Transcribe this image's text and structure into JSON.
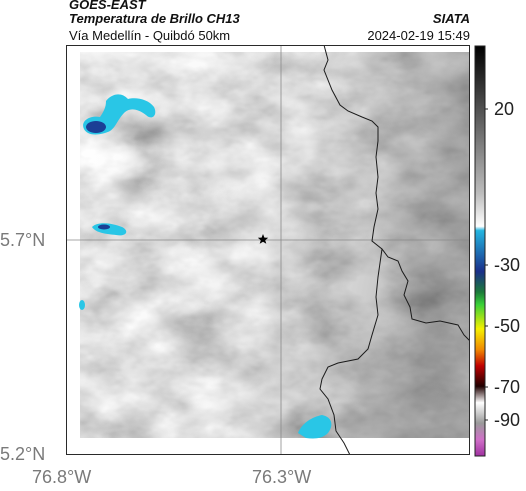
{
  "header": {
    "platform": "GOES-EAST",
    "product": "Temperatura de Brillo CH13",
    "route": "Vía Medellín - Quibdó 50km",
    "org": "SIATA",
    "timestamp": "2024-02-19 15:49"
  },
  "map": {
    "lat_ticks": [
      "5.7°N",
      "5.2°N"
    ],
    "lon_ticks": [
      "76.8°W",
      "76.3°W"
    ],
    "marker_icon": "star-icon"
  },
  "colorbar": {
    "tick_labels": [
      "20",
      "-30",
      "-50",
      "-70",
      "-90"
    ]
  },
  "colors": {
    "cold_cloud": "#29c6e6",
    "deep_cold": "#1b3f95",
    "border_line": "#1a1a1a"
  }
}
